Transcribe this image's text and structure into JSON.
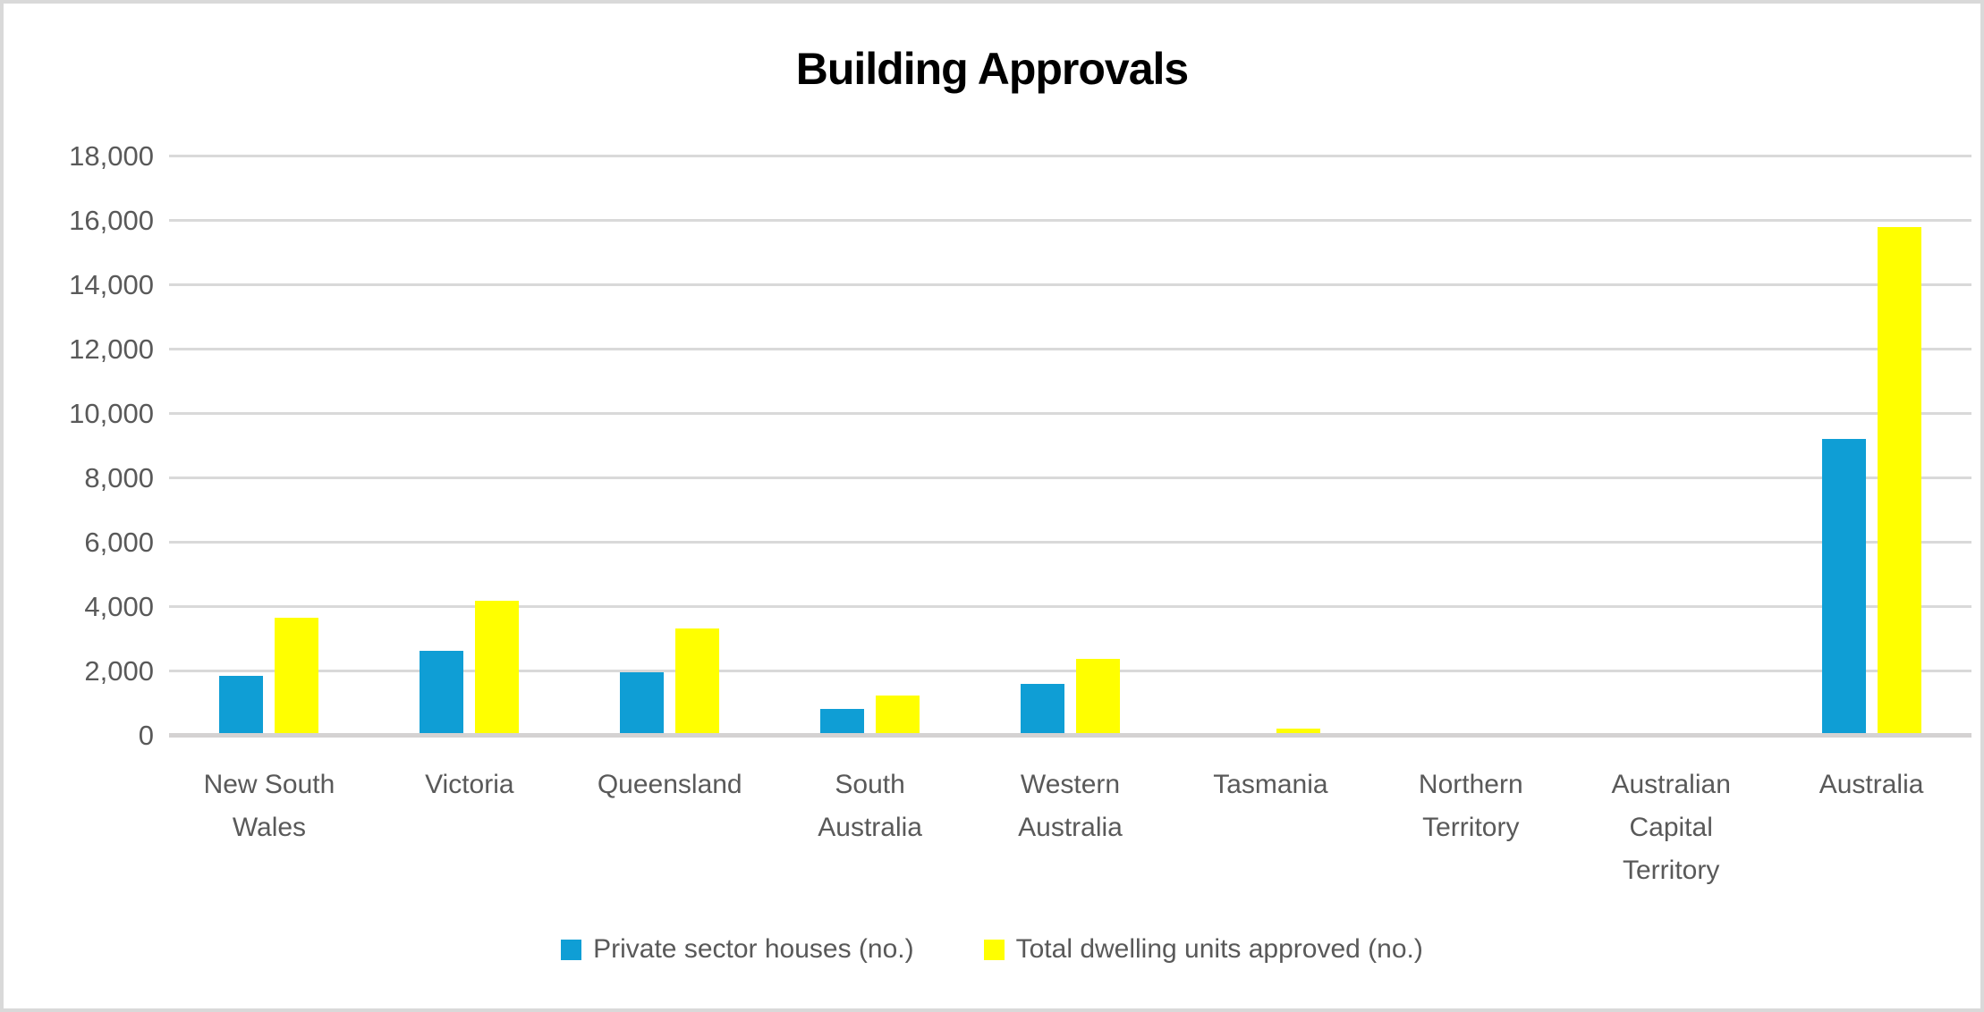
{
  "chart_data": {
    "type": "bar",
    "title": "Building Approvals",
    "categories": [
      "New South\nWales",
      "Victoria",
      "Queensland",
      "South\nAustralia",
      "Western\nAustralia",
      "Tasmania",
      "Northern\nTerritory",
      "Australian\nCapital\nTerritory",
      "Australia"
    ],
    "series": [
      {
        "name": "Private sector houses (no.)",
        "color": "#0F9ED5",
        "values": [
          1850,
          2630,
          1960,
          820,
          1600,
          0,
          0,
          0,
          9230
        ]
      },
      {
        "name": "Total dwelling units approved (no.)",
        "color": "#FFFF00",
        "values": [
          3670,
          4200,
          3320,
          1240,
          2390,
          210,
          0,
          0,
          15800
        ]
      }
    ],
    "ylim": [
      0,
      18000
    ],
    "ytick_step": 2000,
    "ytick_labels": [
      "0",
      "2,000",
      "4,000",
      "6,000",
      "8,000",
      "10,000",
      "12,000",
      "14,000",
      "16,000",
      "18,000"
    ],
    "xlabel": "",
    "ylabel": "",
    "grid": true,
    "legend_position": "bottom"
  },
  "colors": {
    "background": "#FFFFFF",
    "border": "#D9D9D9",
    "gridline": "#D9D9D9",
    "axis_line": "#D4D2D2",
    "axis_text": "#595959",
    "title_text": "#000000"
  }
}
